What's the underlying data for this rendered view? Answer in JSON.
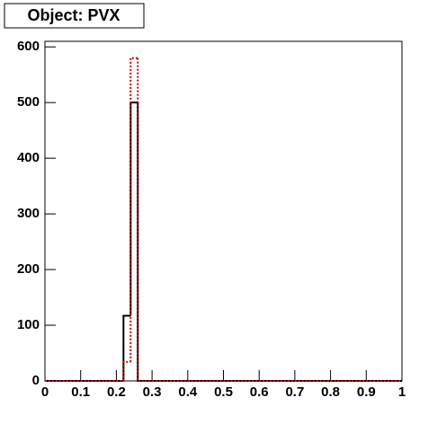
{
  "chart_data": {
    "type": "histogram",
    "title": "Object: PVX",
    "bins": [
      0,
      0.02,
      0.04,
      0.06,
      0.08,
      0.1,
      0.12,
      0.14,
      0.16,
      0.18,
      0.2,
      0.22,
      0.24,
      0.26,
      0.28,
      0.3,
      0.32,
      0.34,
      0.36,
      0.38,
      0.4,
      0.42,
      0.44,
      0.46,
      0.48,
      0.5,
      0.52,
      0.54,
      0.56,
      0.58,
      0.6,
      0.62,
      0.64,
      0.66,
      0.68,
      0.7,
      0.72,
      0.74,
      0.76,
      0.78,
      0.8,
      0.82,
      0.84,
      0.86,
      0.88,
      0.9,
      0.92,
      0.94,
      0.96,
      0.98,
      1
    ],
    "series": [
      {
        "color": "#000000",
        "dash": "solid",
        "values": [
          0,
          0,
          0,
          0,
          0,
          0,
          0,
          0,
          0,
          0,
          0,
          117,
          500,
          0,
          0,
          0,
          0,
          0,
          0,
          0,
          0,
          0,
          0,
          0,
          0,
          0,
          0,
          0,
          0,
          0,
          0,
          0,
          0,
          0,
          0,
          0,
          0,
          0,
          0,
          0,
          0,
          0,
          0,
          0,
          0,
          0,
          0,
          0,
          0,
          0
        ]
      },
      {
        "color": "#cc0000",
        "dash": "dotted",
        "values": [
          0,
          0,
          0,
          0,
          0,
          0,
          0,
          0,
          0,
          0,
          0,
          34,
          580,
          0,
          0,
          0,
          0,
          0,
          0,
          0,
          0,
          0,
          0,
          0,
          0,
          0,
          0,
          0,
          0,
          0,
          0,
          0,
          0,
          0,
          0,
          0,
          0,
          0,
          0,
          0,
          0,
          0,
          0,
          0,
          0,
          0,
          0,
          0,
          0,
          0
        ]
      }
    ],
    "xlim": [
      0,
      1
    ],
    "xticks": [
      0,
      0.1,
      0.2,
      0.3,
      0.4,
      0.5,
      0.6,
      0.7,
      0.8,
      0.9,
      1
    ],
    "ylim": [
      0,
      610
    ],
    "yticks": [
      0,
      100,
      200,
      300,
      400,
      500,
      600
    ]
  }
}
